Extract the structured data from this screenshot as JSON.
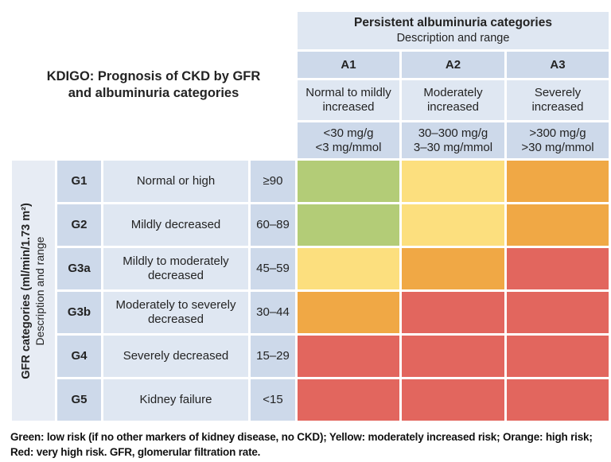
{
  "title": "KDIGO: Prognosis of CKD by GFR and albuminuria categories",
  "albuminuria_header": {
    "title": "Persistent albuminuria categories",
    "subtitle": "Description and range"
  },
  "gfr_header": {
    "title": "GFR categories (ml/min/1.73 m²)",
    "subtitle": "Description and range"
  },
  "albuminuria_categories": [
    {
      "code": "A1",
      "description": "Normal to mildly increased",
      "range_line1": "<30 mg/g",
      "range_line2": "<3 mg/mmol"
    },
    {
      "code": "A2",
      "description": "Moderately increased",
      "range_line1": "30–300 mg/g",
      "range_line2": "3–30 mg/mmol"
    },
    {
      "code": "A3",
      "description": "Severely increased",
      "range_line1": ">300 mg/g",
      "range_line2": ">30 mg/mmol"
    }
  ],
  "gfr_categories": [
    {
      "code": "G1",
      "description": "Normal or high",
      "range": "≥90",
      "risks": [
        "green",
        "yellow",
        "orange"
      ]
    },
    {
      "code": "G2",
      "description": "Mildly decreased",
      "range": "60–89",
      "risks": [
        "green",
        "yellow",
        "orange"
      ]
    },
    {
      "code": "G3a",
      "description": "Mildly to moderately decreased",
      "range": "45–59",
      "risks": [
        "yellow",
        "orange",
        "red"
      ]
    },
    {
      "code": "G3b",
      "description": "Moderately to severely decreased",
      "range": "30–44",
      "risks": [
        "orange",
        "red",
        "red"
      ]
    },
    {
      "code": "G4",
      "description": "Severely decreased",
      "range": "15–29",
      "risks": [
        "red",
        "red",
        "red"
      ]
    },
    {
      "code": "G5",
      "description": "Kidney failure",
      "range": "<15",
      "risks": [
        "red",
        "red",
        "red"
      ]
    }
  ],
  "risk_colors": {
    "green": "#b3cc77",
    "yellow": "#fcdf7e",
    "orange": "#f0a845",
    "red": "#e2665e"
  },
  "palette": {
    "blue-light": "#dfe7f2",
    "blue-mid": "#cdd9ea",
    "blue-strip": "#e7ecf4"
  },
  "footnote": "Green: low risk (if no other markers of kidney disease, no CKD); Yellow: moderately increased risk; Orange: high risk; Red: very high risk. GFR, glomerular filtration rate.",
  "chart_data": {
    "type": "heatmap",
    "title": "KDIGO: Prognosis of CKD by GFR and albuminuria categories",
    "columns": [
      "A1",
      "A2",
      "A3"
    ],
    "column_descriptions": [
      "Normal to mildly increased (<30 mg/g, <3 mg/mmol)",
      "Moderately increased (30–300 mg/g, 3–30 mg/mmol)",
      "Severely increased (>300 mg/g, >30 mg/mmol)"
    ],
    "rows": [
      "G1",
      "G2",
      "G3a",
      "G3b",
      "G4",
      "G5"
    ],
    "row_descriptions": [
      "Normal or high (≥90)",
      "Mildly decreased (60–89)",
      "Mildly to moderately decreased (45–59)",
      "Moderately to severely decreased (30–44)",
      "Severely decreased (15–29)",
      "Kidney failure (<15)"
    ],
    "xlabel": "Persistent albuminuria categories",
    "ylabel": "GFR categories (ml/min/1.73 m²)",
    "values": [
      [
        "green",
        "yellow",
        "orange"
      ],
      [
        "green",
        "yellow",
        "orange"
      ],
      [
        "yellow",
        "orange",
        "red"
      ],
      [
        "orange",
        "red",
        "red"
      ],
      [
        "red",
        "red",
        "red"
      ],
      [
        "red",
        "red",
        "red"
      ]
    ],
    "legend": {
      "green": "low risk (if no other markers of kidney disease, no CKD)",
      "yellow": "moderately increased risk",
      "orange": "high risk",
      "red": "very high risk"
    }
  }
}
